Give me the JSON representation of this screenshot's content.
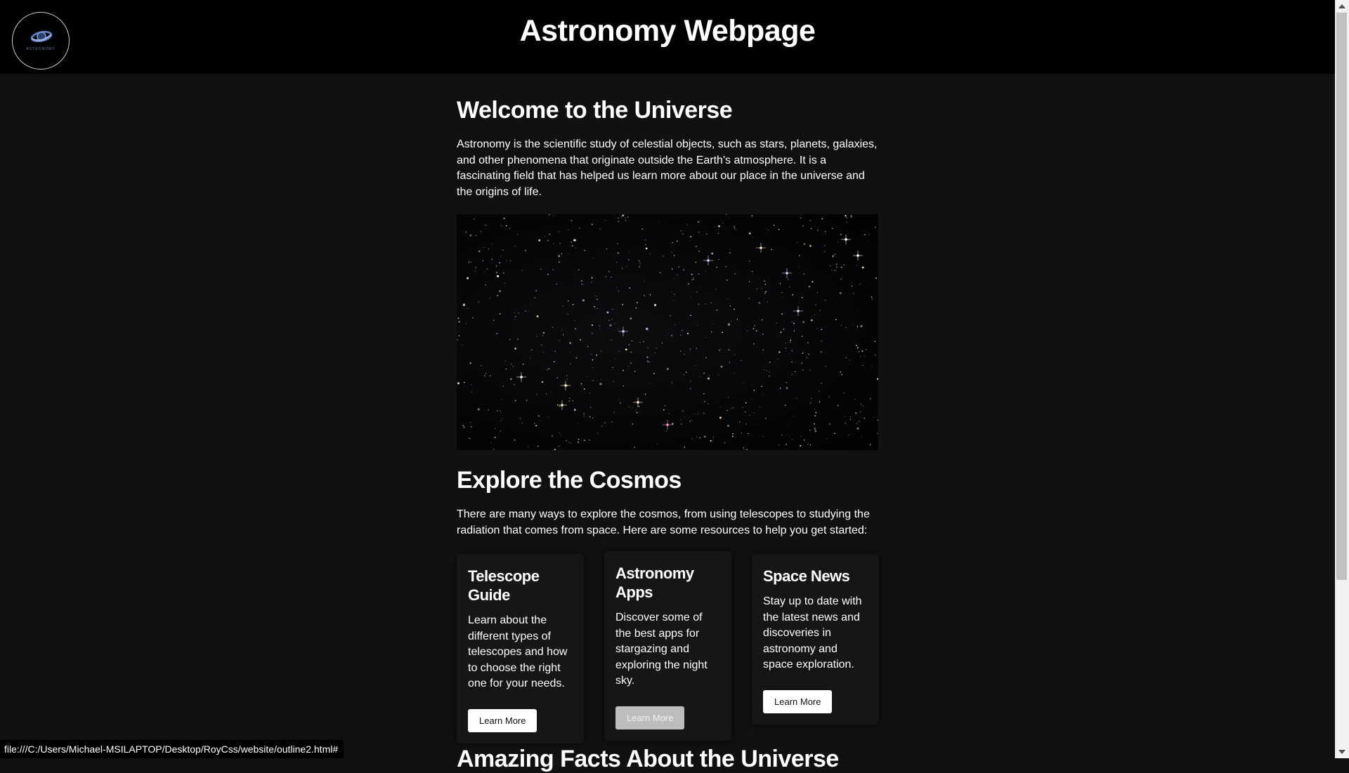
{
  "header": {
    "logo_text": "ASTRONOMY",
    "title": "Astronomy Webpage"
  },
  "welcome": {
    "heading": "Welcome to the Universe",
    "text": "Astronomy is the scientific study of celestial objects, such as stars, planets, galaxies, and other phenomena that originate outside the Earth's atmosphere. It is a fascinating field that has helped us learn more about our place in the universe and the origins of life."
  },
  "explore": {
    "heading": "Explore the Cosmos",
    "text": "There are many ways to explore the cosmos, from using telescopes to studying the radiation that comes from space. Here are some resources to help you get started:"
  },
  "cards": [
    {
      "title": "Telescope Guide",
      "text": "Learn about the different types of telescopes and how to choose the right one for your needs.",
      "button": "Learn More"
    },
    {
      "title": "Astronomy Apps",
      "text": "Discover some of the best apps for stargazing and exploring the night sky.",
      "button": "Learn More"
    },
    {
      "title": "Space News",
      "text": "Stay up to date with the latest news and discoveries in astronomy and space exploration.",
      "button": "Learn More"
    }
  ],
  "next_section": {
    "heading": "Amazing Facts About the Universe"
  },
  "status_bar": {
    "url": "file:///C:/Users/Michael-MSILAPTOP/Desktop/RoyCss/website/outline2.html#"
  },
  "colors": {
    "header_bg": "#000000",
    "page_bg": "#111111",
    "card_bg": "#161616",
    "button_bg": "#ffffff",
    "button_hover_bg": "#bdbdbd"
  }
}
